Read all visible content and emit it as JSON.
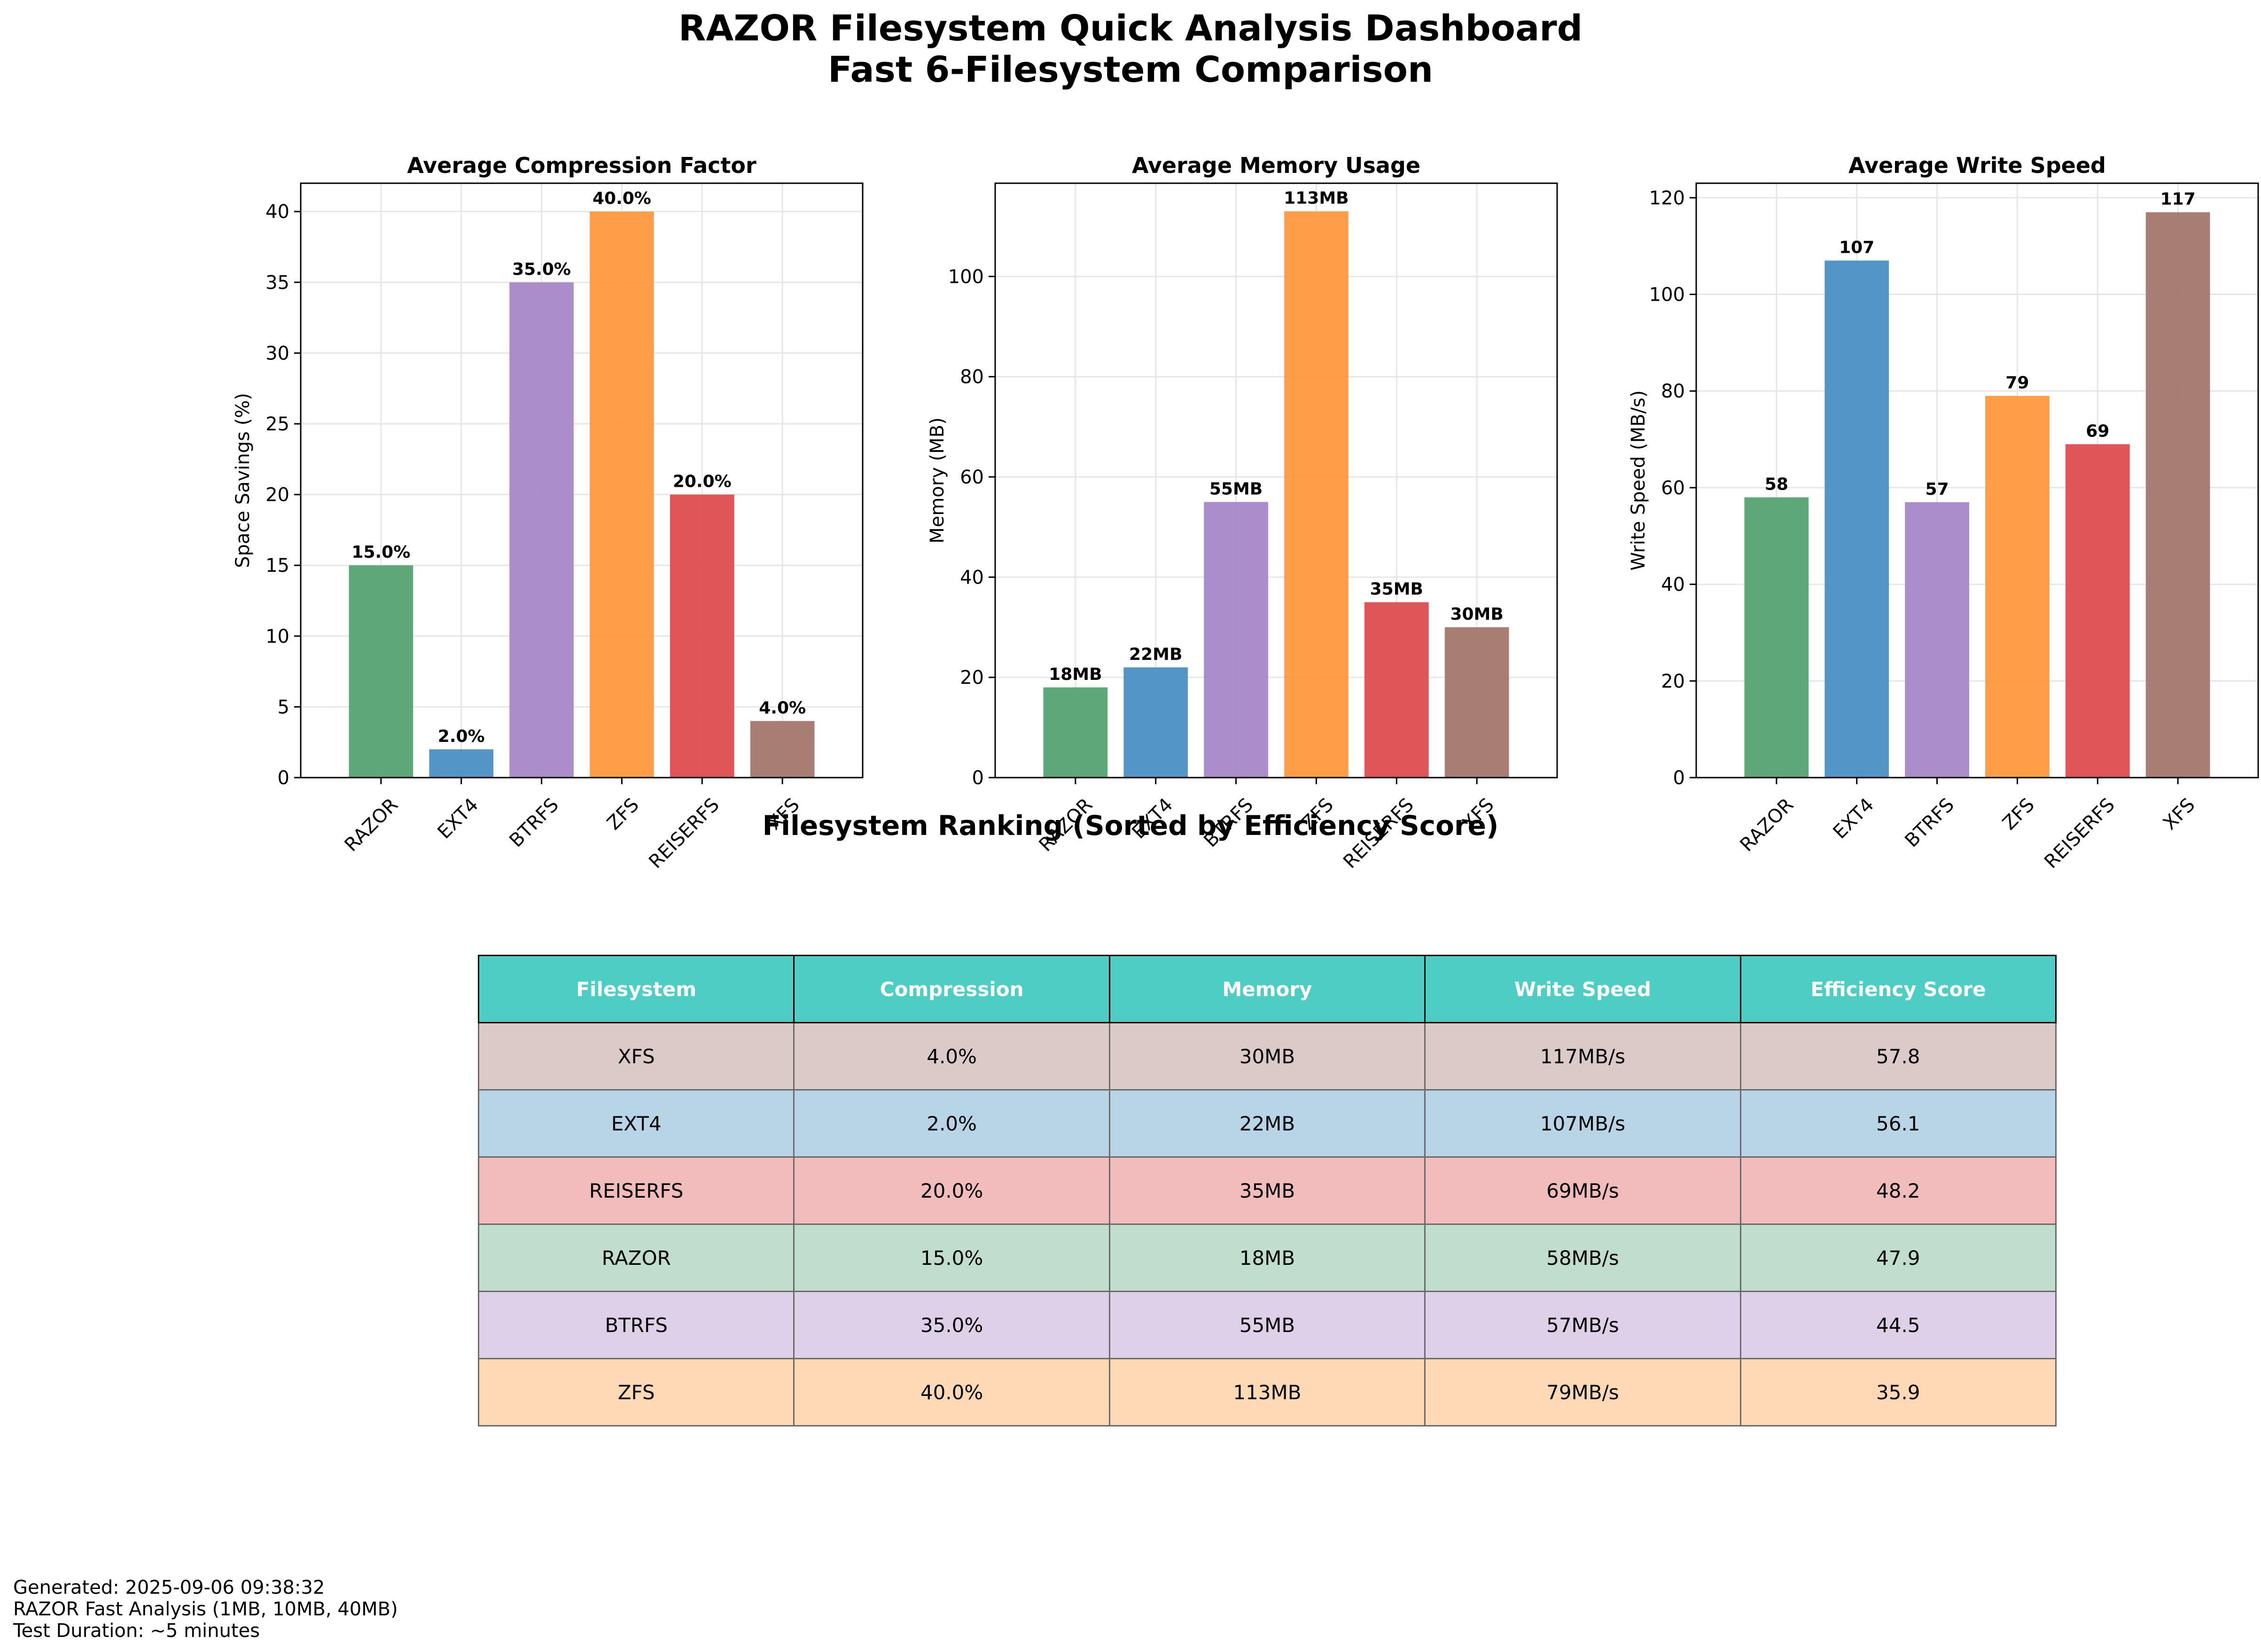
{
  "header": {
    "title": "RAZOR Filesystem Quick Analysis Dashboard",
    "subtitle": "Fast 6-Filesystem Comparison"
  },
  "colors": {
    "RAZOR": "#55a272",
    "EXT4": "#4a8fc4",
    "BTRFS": "#a887c9",
    "ZFS": "#ff983e",
    "REISERFS": "#de4c4f",
    "XFS": "#a2766d",
    "table_header": "#4ecdc4"
  },
  "chart_data": [
    {
      "type": "bar",
      "title": "Average Compression Factor",
      "xlabel": "",
      "ylabel": "Space Savings (%)",
      "categories": [
        "RAZOR",
        "EXT4",
        "BTRFS",
        "ZFS",
        "REISERFS",
        "XFS"
      ],
      "values": [
        15.0,
        2.0,
        35.0,
        40.0,
        20.0,
        4.0
      ],
      "labels": [
        "15.0%",
        "2.0%",
        "35.0%",
        "40.0%",
        "20.0%",
        "4.0%"
      ],
      "ylim": [
        0,
        42
      ],
      "yticks": [
        0,
        5,
        10,
        15,
        20,
        25,
        30,
        35,
        40
      ],
      "grid": true
    },
    {
      "type": "bar",
      "title": "Average Memory Usage",
      "xlabel": "",
      "ylabel": "Memory (MB)",
      "categories": [
        "RAZOR",
        "EXT4",
        "BTRFS",
        "ZFS",
        "REISERFS",
        "XFS"
      ],
      "values": [
        18,
        22,
        55,
        113,
        35,
        30
      ],
      "labels": [
        "18MB",
        "22MB",
        "55MB",
        "113MB",
        "35MB",
        "30MB"
      ],
      "ylim": [
        0,
        118.6
      ],
      "yticks": [
        0,
        20,
        40,
        60,
        80,
        100
      ],
      "grid": true
    },
    {
      "type": "bar",
      "title": "Average Write Speed",
      "xlabel": "",
      "ylabel": "Write Speed (MB/s)",
      "categories": [
        "RAZOR",
        "EXT4",
        "BTRFS",
        "ZFS",
        "REISERFS",
        "XFS"
      ],
      "values": [
        58,
        107,
        57,
        79,
        69,
        117
      ],
      "labels": [
        "58",
        "107",
        "57",
        "79",
        "69",
        "117"
      ],
      "ylim": [
        0,
        123
      ],
      "yticks": [
        0,
        20,
        40,
        60,
        80,
        100,
        120
      ],
      "grid": true
    }
  ],
  "ranking": {
    "title": "Filesystem Ranking (Sorted by Efficiency Score)",
    "columns": [
      "Filesystem",
      "Compression",
      "Memory",
      "Write Speed",
      "Efficiency Score"
    ],
    "rows": [
      {
        "name": "XFS",
        "cells": [
          "XFS",
          "4.0%",
          "30MB",
          "117MB/s",
          "57.8"
        ],
        "bg": "#dbcac7"
      },
      {
        "name": "EXT4",
        "cells": [
          "EXT4",
          "2.0%",
          "22MB",
          "107MB/s",
          "56.1"
        ],
        "bg": "#b8d5e8"
      },
      {
        "name": "REISERFS",
        "cells": [
          "REISERFS",
          "20.0%",
          "35MB",
          "69MB/s",
          "48.2"
        ],
        "bg": "#f2bcbd"
      },
      {
        "name": "RAZOR",
        "cells": [
          "RAZOR",
          "15.0%",
          "18MB",
          "58MB/s",
          "47.9"
        ],
        "bg": "#c0ddcd"
      },
      {
        "name": "BTRFS",
        "cells": [
          "BTRFS",
          "35.0%",
          "55MB",
          "57MB/s",
          "44.5"
        ],
        "bg": "#dfd0ea"
      },
      {
        "name": "ZFS",
        "cells": [
          "ZFS",
          "40.0%",
          "113MB",
          "79MB/s",
          "35.9"
        ],
        "bg": "#ffd8b5"
      }
    ]
  },
  "footer": {
    "generated": "Generated: 2025-09-06 09:38:32",
    "analysis": "RAZOR Fast Analysis (1MB, 10MB, 40MB)",
    "duration": "Test Duration: ~5 minutes"
  }
}
